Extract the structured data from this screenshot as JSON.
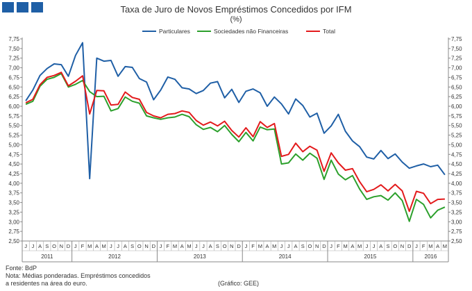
{
  "header": {
    "title": "Taxa de Juro de Novos Empréstimos Concedidos por IFM",
    "unit": "(%)"
  },
  "footer": {
    "source": "Fonte: BdP",
    "note_line1": "Nota: Médias ponderadas.  Empréstimos concedidos",
    "note_line2": "a residentes na área do euro.",
    "credit": "(Gráfico:  GEE)"
  },
  "chart_data": {
    "type": "line",
    "title": "Taxa de Juro de Novos Empréstimos Concedidos por IFM",
    "ylabel": "(%)",
    "ylim": [
      2.5,
      7.75
    ],
    "ytick_step": 0.25,
    "ytick_labels": [
      "2,50",
      "2,75",
      "3,00",
      "3,25",
      "3,50",
      "3,75",
      "4,00",
      "4,25",
      "4,50",
      "4,75",
      "5,00",
      "5,25",
      "5,50",
      "5,75",
      "6,00",
      "6,25",
      "6,50",
      "6,75",
      "7,00",
      "7,25",
      "7,50",
      "7,75"
    ],
    "month_labels": [
      "J",
      "J",
      "A",
      "S",
      "O",
      "N",
      "D",
      "J",
      "F",
      "M",
      "A",
      "M",
      "J",
      "J",
      "A",
      "S",
      "O",
      "N",
      "D",
      "J",
      "F",
      "M",
      "A",
      "M",
      "J",
      "J",
      "A",
      "S",
      "O",
      "N",
      "D",
      "J",
      "F",
      "M",
      "A",
      "M",
      "J",
      "J",
      "A",
      "S",
      "O",
      "N",
      "D",
      "J",
      "F",
      "M",
      "A",
      "M",
      "J",
      "J",
      "A",
      "S",
      "O",
      "N",
      "D",
      "J",
      "F",
      "M",
      "A",
      "M"
    ],
    "year_labels": [
      {
        "label": "2011",
        "start": 0,
        "end": 7
      },
      {
        "label": "2012",
        "start": 7,
        "end": 19
      },
      {
        "label": "2013",
        "start": 19,
        "end": 31
      },
      {
        "label": "2014",
        "start": 31,
        "end": 43
      },
      {
        "label": "2015",
        "start": 43,
        "end": 55
      },
      {
        "label": "2016",
        "start": 55,
        "end": 60
      }
    ],
    "legend_position": "top",
    "series": [
      {
        "name": "Particulares",
        "color": "#1f5fa6",
        "values": [
          6.14,
          6.42,
          6.8,
          6.98,
          7.1,
          7.08,
          6.78,
          7.32,
          7.65,
          4.12,
          7.25,
          7.17,
          7.19,
          6.78,
          7.03,
          7.01,
          6.72,
          6.63,
          6.17,
          6.42,
          6.76,
          6.7,
          6.48,
          6.45,
          6.33,
          6.41,
          6.6,
          6.64,
          6.22,
          6.44,
          6.1,
          6.39,
          6.45,
          6.35,
          6.0,
          6.24,
          6.06,
          5.8,
          6.19,
          6.02,
          5.72,
          5.82,
          5.3,
          5.49,
          5.79,
          5.35,
          5.1,
          4.95,
          4.68,
          4.63,
          4.85,
          4.64,
          4.76,
          4.55,
          4.39,
          4.45,
          4.5,
          4.43,
          4.47,
          4.22
        ]
      },
      {
        "name": "Sociedades não Financeiras",
        "color": "#2ca02c",
        "values": [
          6.05,
          6.13,
          6.52,
          6.7,
          6.75,
          6.85,
          6.5,
          6.57,
          6.67,
          6.38,
          6.25,
          6.26,
          5.88,
          5.94,
          6.24,
          6.13,
          6.08,
          5.75,
          5.7,
          5.66,
          5.7,
          5.72,
          5.79,
          5.73,
          5.52,
          5.4,
          5.45,
          5.34,
          5.5,
          5.27,
          5.08,
          5.32,
          5.1,
          5.46,
          5.39,
          5.41,
          4.5,
          4.53,
          4.76,
          4.6,
          4.78,
          4.65,
          4.1,
          4.6,
          4.24,
          4.09,
          4.2,
          3.85,
          3.58,
          3.65,
          3.68,
          3.56,
          3.75,
          3.55,
          3.01,
          3.58,
          3.45,
          3.1,
          3.3,
          3.38
        ]
      },
      {
        "name": "Total",
        "color": "#e31a1c",
        "values": [
          6.09,
          6.18,
          6.56,
          6.75,
          6.8,
          6.88,
          6.53,
          6.65,
          6.79,
          5.8,
          6.41,
          6.4,
          6.03,
          6.05,
          6.37,
          6.23,
          6.18,
          5.84,
          5.75,
          5.7,
          5.79,
          5.81,
          5.88,
          5.84,
          5.63,
          5.51,
          5.59,
          5.49,
          5.61,
          5.37,
          5.2,
          5.44,
          5.21,
          5.6,
          5.45,
          5.55,
          4.7,
          4.75,
          5.04,
          4.82,
          4.96,
          4.86,
          4.31,
          4.79,
          4.53,
          4.34,
          4.38,
          4.04,
          3.78,
          3.84,
          3.96,
          3.8,
          3.97,
          3.8,
          3.27,
          3.79,
          3.74,
          3.47,
          3.58,
          3.59
        ]
      }
    ]
  }
}
